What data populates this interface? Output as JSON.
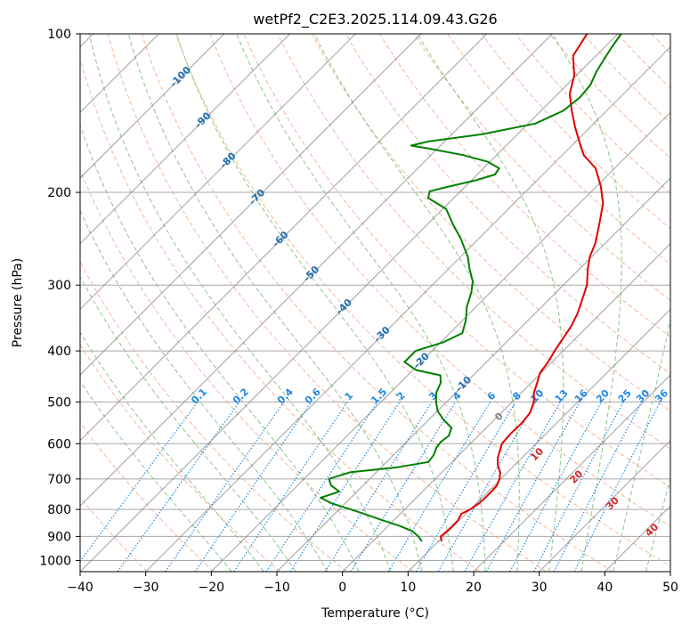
{
  "chart_data": {
    "type": "line",
    "title": "wetPf2_C2E3.2025.114.09.43.G26",
    "xlabel": "Temperature (°C)",
    "ylabel": "Pressure (hPa)",
    "xlim": [
      -40,
      50
    ],
    "ylim": [
      1050,
      100
    ],
    "yscale": "log",
    "skew_deg": 45,
    "x_ticks": [
      -40,
      -30,
      -20,
      -10,
      0,
      10,
      20,
      30,
      40,
      50
    ],
    "x_tick_labels": [
      "−40",
      "−30",
      "−20",
      "−10",
      "0",
      "10",
      "20",
      "30",
      "40",
      "50"
    ],
    "y_ticks": [
      100,
      200,
      300,
      400,
      500,
      600,
      700,
      800,
      900,
      1000
    ],
    "y_tick_labels": [
      "100",
      "200",
      "300",
      "400",
      "500",
      "600",
      "700",
      "800",
      "900",
      "1000"
    ],
    "grid": true,
    "colors": {
      "temperature": "#e00000",
      "dewpoint": "#008000",
      "isotherm": "#808080",
      "isobar": "#a8a8a8",
      "dry_adiabat": "#f4a582",
      "moist_adiabat": "#7fbf7f",
      "mixing_ratio": "#1e88e5",
      "mixing_label": "#1e88e5",
      "dry_label": "#1f6fb0",
      "moist_label_warm": "#d62728",
      "moist_label_zero": "#808080"
    },
    "series": [
      {
        "key": "temperature",
        "points": [
          [
            10.5,
            920
          ],
          [
            9.6,
            900
          ],
          [
            9.8,
            870
          ],
          [
            9.8,
            840
          ],
          [
            9.3,
            815
          ],
          [
            10.0,
            800
          ],
          [
            10.4,
            780
          ],
          [
            10.5,
            760
          ],
          [
            10.5,
            740
          ],
          [
            10.4,
            720
          ],
          [
            9.8,
            700
          ],
          [
            8.9,
            680
          ],
          [
            7.5,
            660
          ],
          [
            6.4,
            640
          ],
          [
            5.6,
            620
          ],
          [
            4.8,
            600
          ],
          [
            4.6,
            575
          ],
          [
            4.7,
            550
          ],
          [
            4.4,
            525
          ],
          [
            3.3,
            500
          ],
          [
            1.9,
            480
          ],
          [
            0.9,
            460
          ],
          [
            -0.2,
            440
          ],
          [
            -0.6,
            420
          ],
          [
            -1.3,
            400
          ],
          [
            -1.9,
            380
          ],
          [
            -2.5,
            360
          ],
          [
            -3.5,
            340
          ],
          [
            -4.9,
            320
          ],
          [
            -6.4,
            300
          ],
          [
            -8.7,
            280
          ],
          [
            -10.3,
            265
          ],
          [
            -11.5,
            250
          ],
          [
            -13.8,
            230
          ],
          [
            -16.4,
            210
          ],
          [
            -19.3,
            195
          ],
          [
            -22.9,
            180
          ],
          [
            -26.7,
            170
          ],
          [
            -29.5,
            160
          ],
          [
            -32.4,
            150
          ],
          [
            -35.3,
            140
          ],
          [
            -38.2,
            130
          ],
          [
            -40.3,
            120
          ],
          [
            -43.5,
            110
          ],
          [
            -44.7,
            100
          ]
        ]
      },
      {
        "key": "dewpoint",
        "points": [
          [
            7.5,
            920
          ],
          [
            6.2,
            900
          ],
          [
            4.5,
            880
          ],
          [
            1.8,
            860
          ],
          [
            -1.5,
            840
          ],
          [
            -5.6,
            815
          ],
          [
            -8.2,
            800
          ],
          [
            -11.9,
            780
          ],
          [
            -14.6,
            760
          ],
          [
            -12.7,
            740
          ],
          [
            -14.9,
            720
          ],
          [
            -16.2,
            700
          ],
          [
            -14.0,
            680
          ],
          [
            -7.5,
            665
          ],
          [
            -3.6,
            650
          ],
          [
            -3.9,
            630
          ],
          [
            -4.6,
            610
          ],
          [
            -4.8,
            595
          ],
          [
            -4.5,
            580
          ],
          [
            -5.3,
            560
          ],
          [
            -7.8,
            540
          ],
          [
            -10.0,
            520
          ],
          [
            -11.6,
            500
          ],
          [
            -13.0,
            480
          ],
          [
            -13.8,
            460
          ],
          [
            -15.0,
            445
          ],
          [
            -19.5,
            435
          ],
          [
            -22.5,
            420
          ],
          [
            -22.5,
            400
          ],
          [
            -19.6,
            385
          ],
          [
            -18.1,
            370
          ],
          [
            -19.5,
            350
          ],
          [
            -21.4,
            330
          ],
          [
            -22.9,
            310
          ],
          [
            -24.4,
            295
          ],
          [
            -26.7,
            280
          ],
          [
            -28.9,
            265
          ],
          [
            -32.7,
            245
          ],
          [
            -36.1,
            230
          ],
          [
            -39.5,
            215
          ],
          [
            -43.9,
            205
          ],
          [
            -44.7,
            199
          ],
          [
            -42.5,
            195
          ],
          [
            -39.5,
            190
          ],
          [
            -37.3,
            185
          ],
          [
            -37.6,
            180
          ],
          [
            -40.3,
            175
          ],
          [
            -45.0,
            170
          ],
          [
            -51.5,
            165
          ],
          [
            -54.5,
            163
          ],
          [
            -52.4,
            160
          ],
          [
            -45.3,
            155
          ],
          [
            -38.9,
            148
          ],
          [
            -36.6,
            140
          ],
          [
            -36.1,
            132
          ],
          [
            -36.4,
            125
          ],
          [
            -37.5,
            118
          ],
          [
            -38.2,
            112
          ],
          [
            -38.9,
            106
          ],
          [
            -39.5,
            100
          ]
        ]
      }
    ],
    "mixing_ratio_labels": [
      "0.1",
      "0.2",
      "0.4",
      "0.6",
      "1",
      "1.5",
      "2",
      "3",
      "4",
      "6",
      "8",
      "10",
      "13",
      "16",
      "20",
      "25",
      "30",
      "36"
    ],
    "dry_adiabat_labels": [
      "-100",
      "-90",
      "-80",
      "-70",
      "-60",
      "-50",
      "-40",
      "-30",
      "-20",
      "-10"
    ],
    "moist_adiabat_labels": [
      "0",
      "10",
      "20",
      "30",
      "40"
    ]
  }
}
